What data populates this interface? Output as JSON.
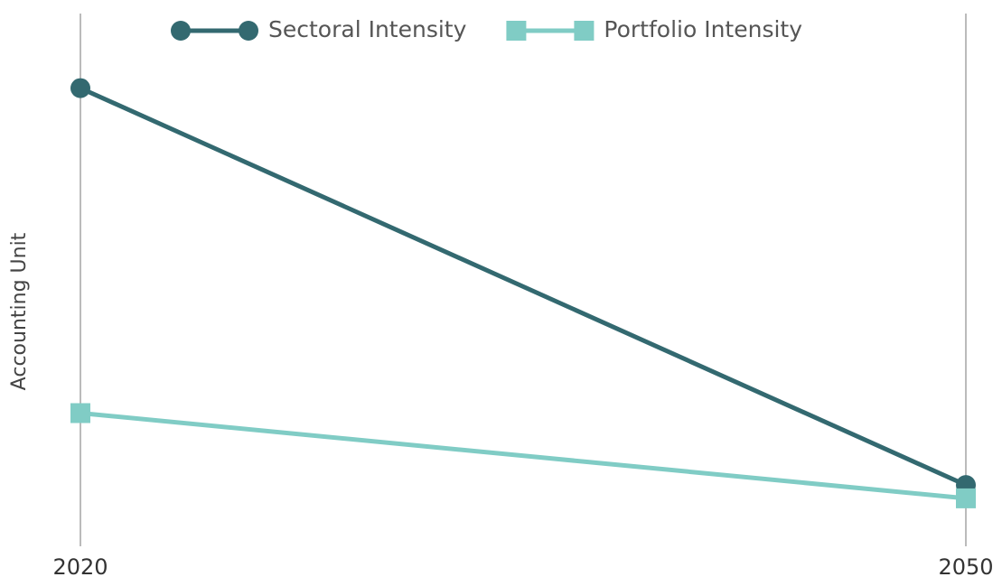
{
  "chart_data": {
    "type": "line",
    "y_label": "Accounting Unit",
    "x": [
      2020,
      2050
    ],
    "xlim": [
      2020,
      2050
    ],
    "xticks": [
      2020,
      2050
    ],
    "ylim": [
      0,
      100
    ],
    "series": [
      {
        "name": "Sectoral Intensity",
        "color": "#336970",
        "marker": "circle",
        "values": [
          86,
          11.5
        ]
      },
      {
        "name": "Portfolio Intensity",
        "color": "#80ccc5",
        "marker": "square",
        "values": [
          25,
          9
        ]
      }
    ],
    "legend": "top"
  }
}
